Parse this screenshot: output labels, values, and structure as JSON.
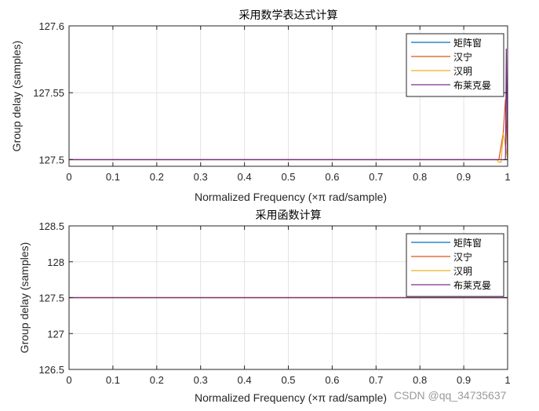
{
  "figure_bg": "#ffffff",
  "watermark": "CSDN @qq_34735637",
  "chart_data": [
    {
      "type": "line",
      "title": "采用数学表达式计算",
      "xlabel": "Normalized Frequency (×π rad/sample)",
      "ylabel": "Group delay (samples)",
      "xlim": [
        0,
        1
      ],
      "ylim": [
        127.495,
        127.6
      ],
      "xticks": [
        0,
        0.1,
        0.2,
        0.3,
        0.4,
        0.5,
        0.6,
        0.7,
        0.8,
        0.9,
        1
      ],
      "xtick_labels": [
        "0",
        "0.1",
        "0.2",
        "0.3",
        "0.4",
        "0.5",
        "0.6",
        "0.7",
        "0.8",
        "0.9",
        "1"
      ],
      "yticks": [
        127.5,
        127.55,
        127.6
      ],
      "ytick_labels": [
        "127.5",
        "127.55",
        "127.6"
      ],
      "grid": true,
      "legend_position": "top-right",
      "series": [
        {
          "name": "矩阵窗",
          "color": "#0072BD",
          "x": [
            0,
            0.97,
            0.985,
            1.0
          ],
          "y": [
            127.5,
            127.5,
            127.5,
            127.5
          ]
        },
        {
          "name": "汉宁",
          "color": "#D95319",
          "x": [
            0,
            0.98,
            0.99,
            0.995,
            1.0
          ],
          "y": [
            127.5,
            127.5,
            127.52,
            127.545,
            127.5
          ]
        },
        {
          "name": "汉明",
          "color": "#EDB120",
          "x": [
            0,
            0.975,
            0.98,
            0.985,
            0.99,
            1.0
          ],
          "y": [
            127.5,
            127.5,
            127.498,
            127.498,
            127.52,
            127.5
          ]
        },
        {
          "name": "布莱克曼",
          "color": "#7E2F8E",
          "x": [
            0,
            0.995,
            0.997,
            1.0
          ],
          "y": [
            127.5,
            127.5,
            127.583,
            127.5
          ]
        }
      ]
    },
    {
      "type": "line",
      "title": "采用函数计算",
      "xlabel": "Normalized Frequency (×π rad/sample)",
      "ylabel": "Group delay (samples)",
      "xlim": [
        0,
        1
      ],
      "ylim": [
        126.5,
        128.5
      ],
      "xticks": [
        0,
        0.1,
        0.2,
        0.3,
        0.4,
        0.5,
        0.6,
        0.7,
        0.8,
        0.9,
        1
      ],
      "xtick_labels": [
        "0",
        "0.1",
        "0.2",
        "0.3",
        "0.4",
        "0.5",
        "0.6",
        "0.7",
        "0.8",
        "0.9",
        "1"
      ],
      "yticks": [
        126.5,
        127,
        127.5,
        128,
        128.5
      ],
      "ytick_labels": [
        "126.5",
        "127",
        "127.5",
        "128",
        "128.5"
      ],
      "grid": true,
      "legend_position": "top-right",
      "series": [
        {
          "name": "矩阵窗",
          "color": "#0072BD",
          "x": [
            0,
            1
          ],
          "y": [
            127.5,
            127.5
          ]
        },
        {
          "name": "汉宁",
          "color": "#D95319",
          "x": [
            0,
            1
          ],
          "y": [
            127.5,
            127.5
          ]
        },
        {
          "name": "汉明",
          "color": "#EDB120",
          "x": [
            0,
            1
          ],
          "y": [
            127.5,
            127.5
          ]
        },
        {
          "name": "布莱克曼",
          "color": "#7E2F8E",
          "x": [
            0,
            1
          ],
          "y": [
            127.5,
            127.5
          ]
        }
      ]
    }
  ]
}
